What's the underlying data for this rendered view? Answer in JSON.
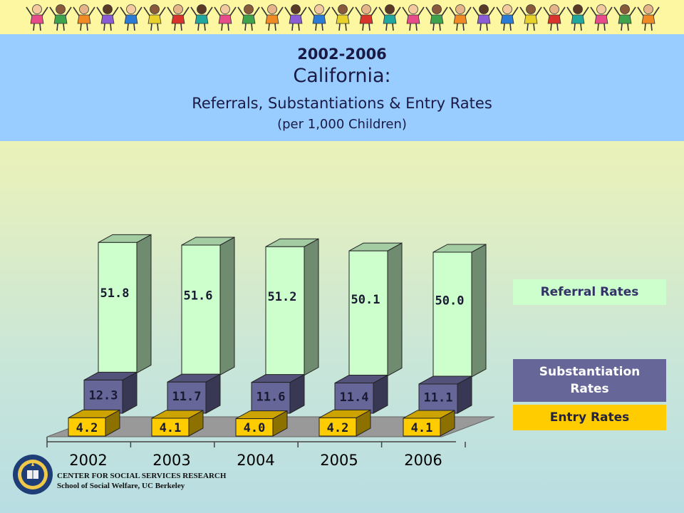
{
  "title": {
    "years": "2002-2006",
    "state": "California:",
    "subtitle": "Referrals, Substantiations & Entry Rates",
    "unit": "(per 1,000 Children)"
  },
  "legend": {
    "referral": "Referral Rates",
    "substantiation": "Substantiation Rates",
    "entry": "Entry Rates"
  },
  "footer": {
    "line1": "CENTER FOR SOCIAL SERVICES RESEARCH",
    "line2": "School of Social Welfare, UC Berkeley"
  },
  "colors": {
    "referral": "#ccffcc",
    "substantiation": "#666699",
    "entry": "#ffcc00",
    "floor": "#999999"
  },
  "chart_data": {
    "type": "bar",
    "categories": [
      "2002",
      "2003",
      "2004",
      "2005",
      "2006"
    ],
    "series": [
      {
        "name": "Entry Rates",
        "values": [
          4.2,
          4.1,
          4.0,
          4.2,
          4.1
        ],
        "labels": [
          "4.2",
          "4.1",
          "4.0",
          "4.2",
          "4.1"
        ]
      },
      {
        "name": "Substantiation Rates",
        "values": [
          12.3,
          11.7,
          11.6,
          11.4,
          11.1
        ],
        "labels": [
          "12.3",
          "11.7",
          "11.6",
          "11.4",
          "11.1"
        ]
      },
      {
        "name": "Referral Rates",
        "values": [
          51.8,
          51.6,
          51.2,
          50.1,
          50.0
        ],
        "labels": [
          "51.8",
          "51.6",
          "51.2",
          "50.1",
          "50.0"
        ]
      }
    ],
    "legend_position": "right",
    "grid": false
  }
}
